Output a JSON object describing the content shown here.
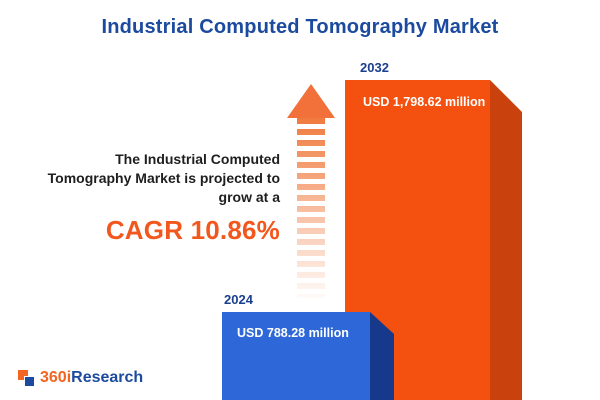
{
  "title": "Industrial Computed Tomography Market",
  "description": {
    "lines": [
      "The Industrial Computed",
      "Tomography Market is projected to",
      "grow at a"
    ],
    "cagr_label": "CAGR 10.86%"
  },
  "chart_data": {
    "type": "bar",
    "title": "Industrial Computed Tomography Market",
    "categories": [
      "2024",
      "2032"
    ],
    "values": [
      788.28,
      1798.62
    ],
    "unit": "USD million",
    "value_labels": [
      "USD 788.28 million",
      "USD 1,798.62 million"
    ],
    "cagr_percent": 10.86,
    "bar_colors": [
      "#2E68D8",
      "#F4500F"
    ],
    "bar_side_colors": [
      "#17398C",
      "#C9410C"
    ],
    "legend": "none",
    "gridlines": false,
    "ylim": [
      0,
      1798.62
    ]
  },
  "arrow": {
    "direction": "up",
    "color": "#F2703A"
  },
  "logo": {
    "text_orange": "360i",
    "text_blue": "Research"
  },
  "colors": {
    "title_blue": "#1B4A9E",
    "accent_orange": "#F2581D",
    "text_dark": "#1E1E1E",
    "background": "#FFFFFF"
  }
}
